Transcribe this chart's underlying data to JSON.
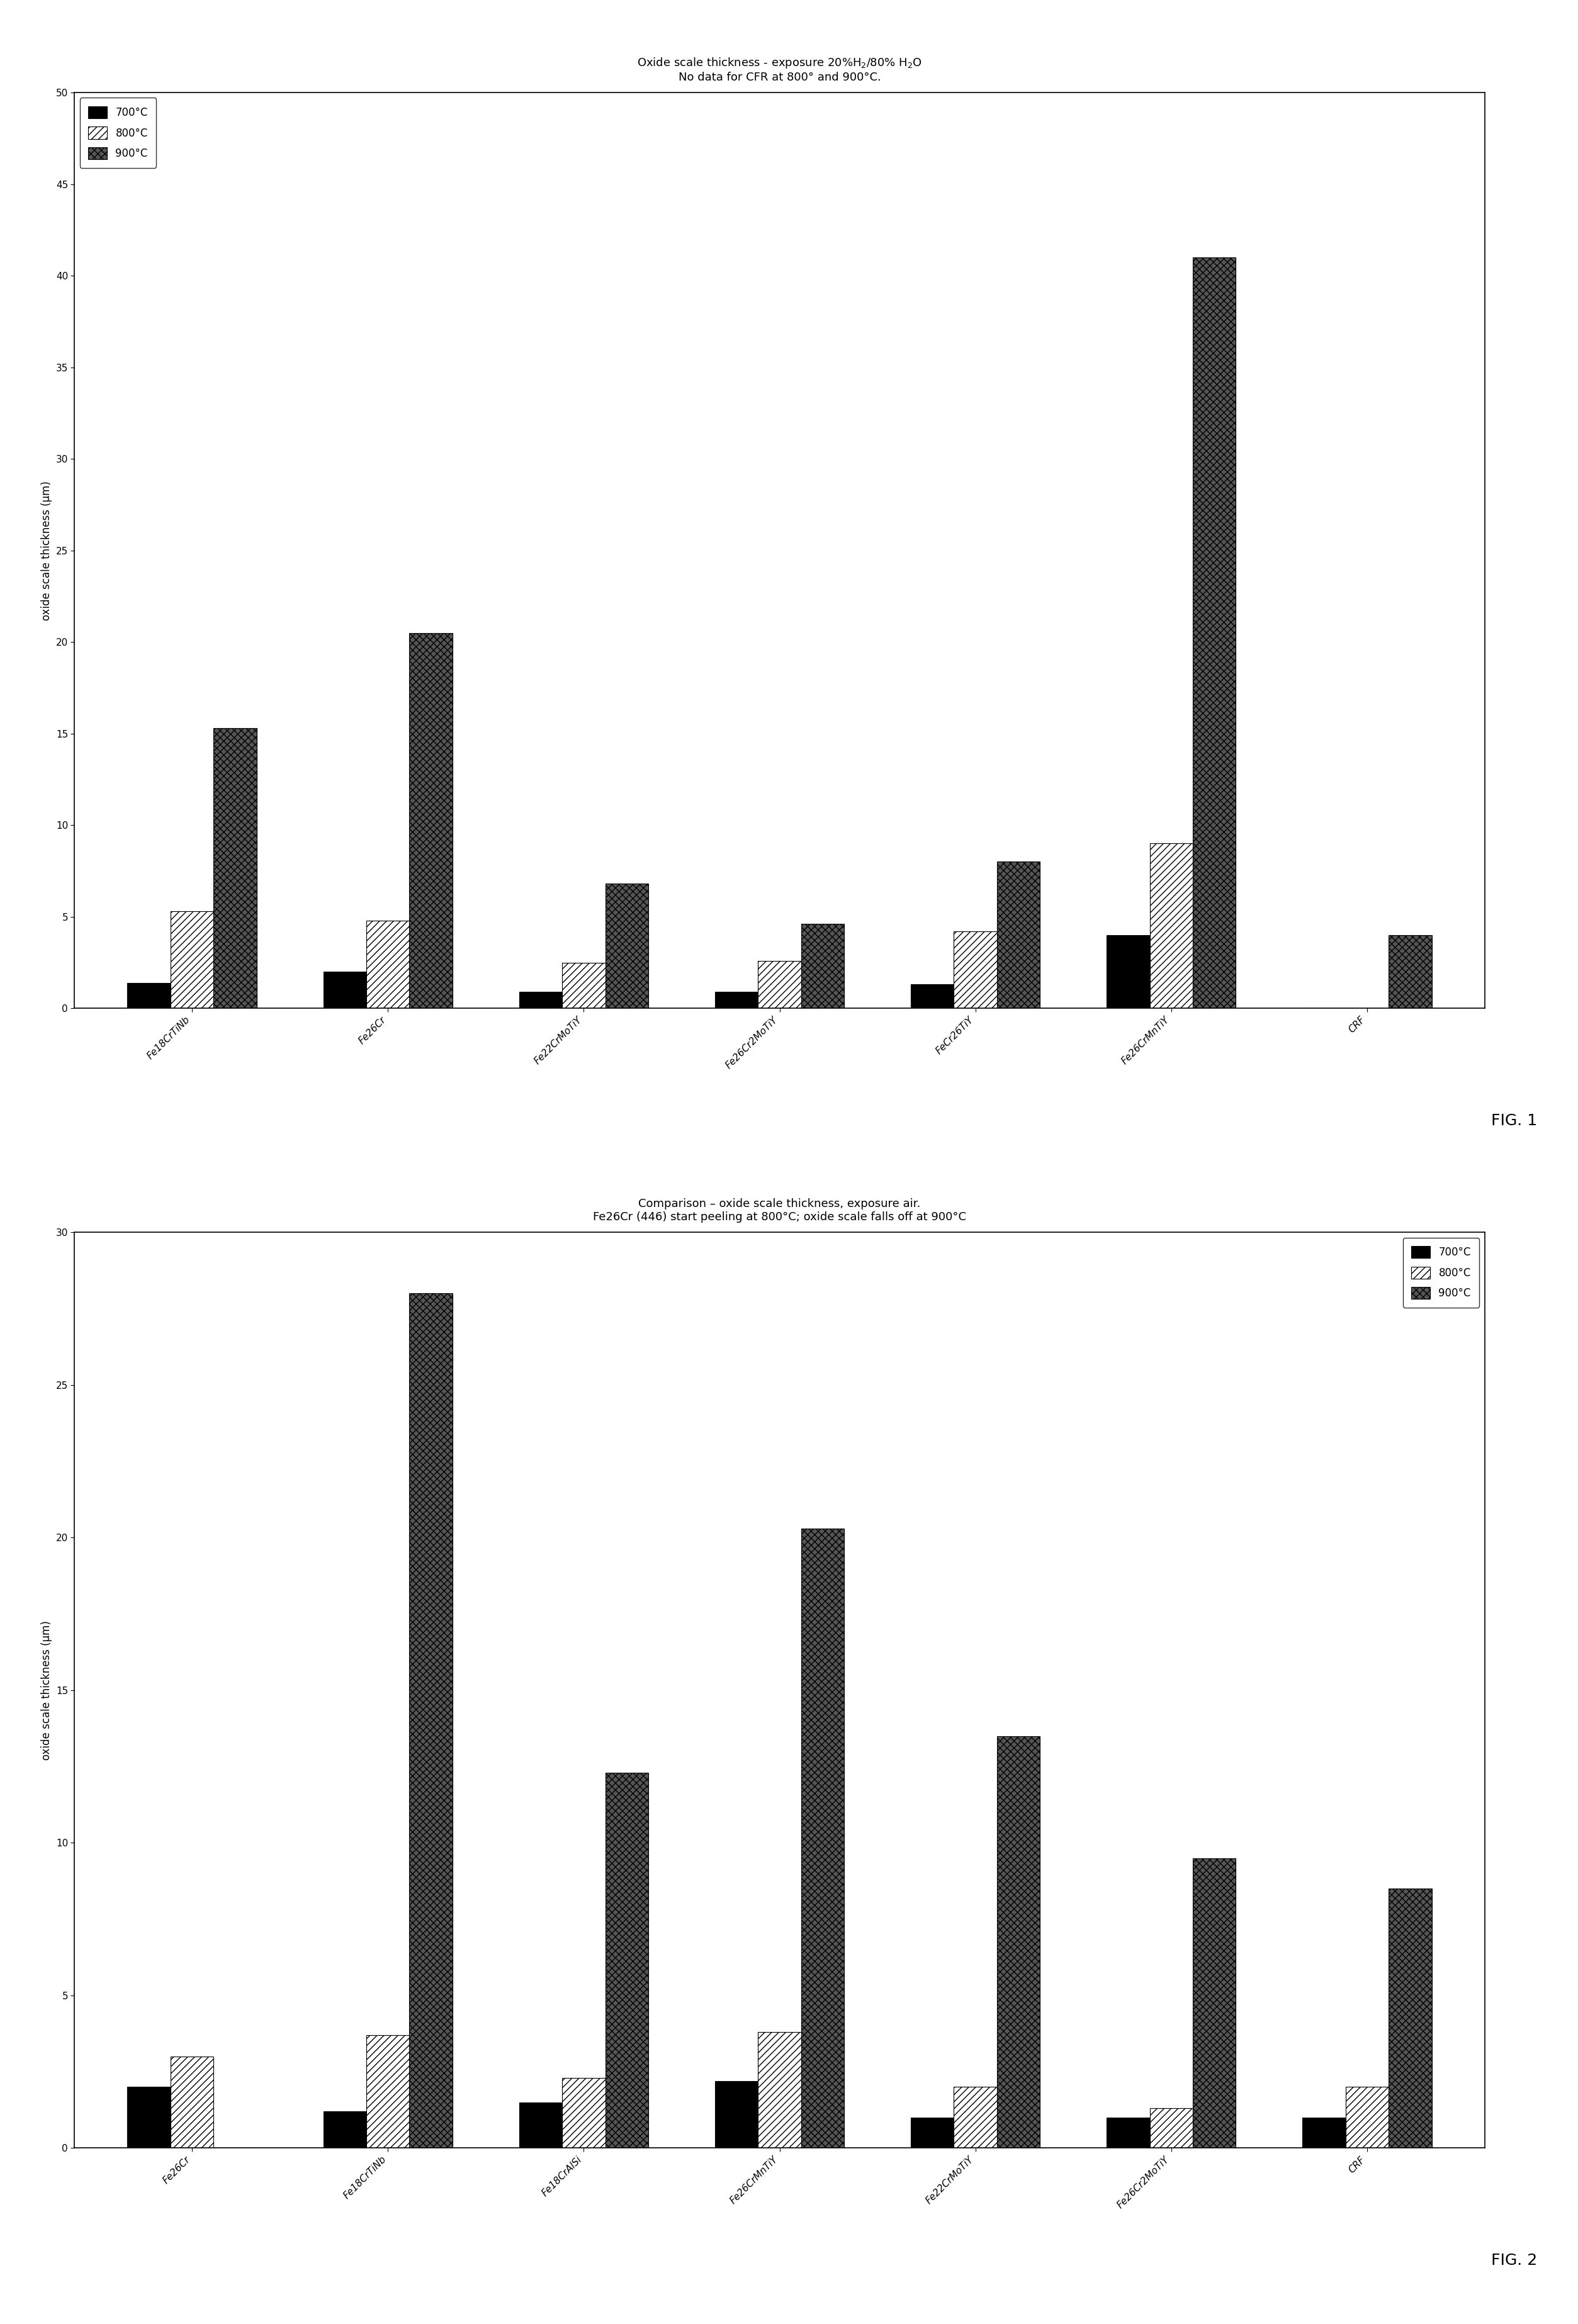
{
  "fig1": {
    "title_line1": "Oxide scale thickness - exposure 20%H$_2$/80% H$_2$O",
    "title_line2": "No data for CFR at 800° and 900°C.",
    "categories": [
      "Fe18CrTiNb",
      "Fe26Cr",
      "Fe22CrMoTiY",
      "Fe26Cr2MoTiY",
      "FeCr26TiY",
      "Fe26CrMnTiY",
      "CRF"
    ],
    "data_700": [
      1.4,
      2.0,
      0.9,
      0.9,
      1.3,
      4.0,
      0.0
    ],
    "data_800": [
      5.3,
      4.8,
      2.5,
      2.6,
      4.2,
      9.0,
      0.0
    ],
    "data_900": [
      15.3,
      20.5,
      6.8,
      4.6,
      8.0,
      41.0,
      4.0
    ],
    "ylabel": "oxide scale thickness (µm)",
    "ylim": [
      0,
      50
    ],
    "yticks": [
      0,
      5,
      10,
      15,
      20,
      25,
      30,
      35,
      40,
      45,
      50
    ],
    "fig_label": "FIG. 1",
    "legend_loc": "upper left"
  },
  "fig2": {
    "title_line1": "Comparison – oxide scale thickness, exposure air.",
    "title_line2": "Fe26Cr (446) start peeling at 800°C; oxide scale falls off at 900°C",
    "categories": [
      "Fe26Cr",
      "Fe18CrTiNb",
      "Fe18CrAlSi",
      "Fe26CrMnTiY",
      "Fe22CrMoTiY",
      "Fe26Cr2MoTiY",
      "CRF"
    ],
    "data_700": [
      2.0,
      1.2,
      1.5,
      2.2,
      1.0,
      1.0,
      1.0
    ],
    "data_800": [
      3.0,
      3.7,
      2.3,
      3.8,
      2.0,
      1.3,
      2.0
    ],
    "data_900": [
      0.0,
      28.0,
      12.3,
      20.3,
      13.5,
      9.5,
      8.5
    ],
    "ylabel": "oxide scale thickness (µm)",
    "ylim": [
      0,
      30
    ],
    "yticks": [
      0,
      5,
      10,
      15,
      20,
      25,
      30
    ],
    "fig_label": "FIG. 2",
    "legend_loc": "upper right"
  },
  "color_700": "#000000",
  "color_800_face": "#ffffff",
  "color_800_hatch": "///",
  "color_900_face": "#555555",
  "color_900_hatch": "xxx",
  "bar_width": 0.22,
  "background_color": "#ffffff",
  "legend_labels": [
    "700°C",
    "800°C",
    "900°C"
  ],
  "title_fontsize": 13,
  "ylabel_fontsize": 12,
  "tick_fontsize": 11,
  "legend_fontsize": 12,
  "figlabel_fontsize": 18
}
